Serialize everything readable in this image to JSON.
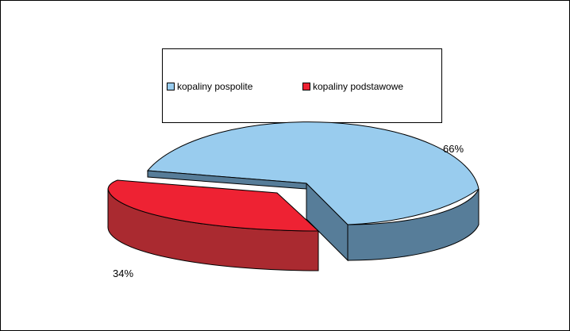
{
  "chart_data": {
    "type": "pie",
    "title": "",
    "three_d": true,
    "exploded_slice": "kopaliny podstawowe",
    "legend_position": "top",
    "slices": [
      {
        "label": "kopaliny pospolite",
        "value": 66,
        "value_label": "66%",
        "color": "#99CCEE",
        "side_color": "#577D99"
      },
      {
        "label": "kopaliny podstawowe",
        "value": 34,
        "value_label": "34%",
        "color": "#EE2233",
        "side_color": "#AA2A30"
      }
    ]
  }
}
